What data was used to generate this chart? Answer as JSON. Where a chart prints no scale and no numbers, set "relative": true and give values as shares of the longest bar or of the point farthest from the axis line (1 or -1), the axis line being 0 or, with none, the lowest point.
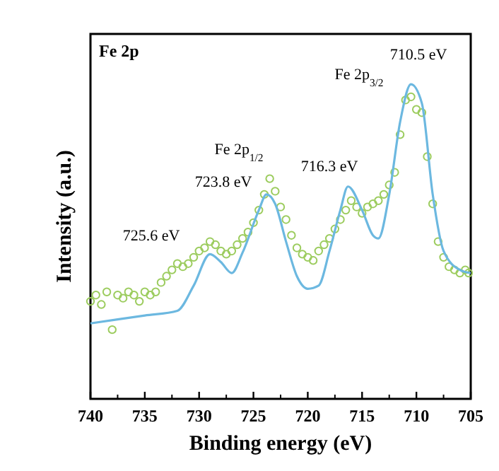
{
  "chart_data": {
    "type": "line",
    "title": "Fe 2p",
    "xlabel": "Binding energy (eV)",
    "ylabel": "Intensity (a.u.)",
    "relative": true,
    "xlim": [
      740,
      705
    ],
    "xticks": [
      740,
      735,
      730,
      725,
      720,
      715,
      710,
      705
    ],
    "series": [
      {
        "type": "scatter",
        "color": "#9ccc5e",
        "x": [
          740,
          739.5,
          739,
          738.5,
          738,
          737.5,
          737,
          736.5,
          736,
          735.5,
          735,
          734.5,
          734,
          733.5,
          733,
          732.5,
          732,
          731.5,
          731,
          730.5,
          730,
          729.5,
          729,
          728.5,
          728,
          727.5,
          727,
          726.5,
          726,
          725.5,
          725,
          724.5,
          724,
          723.5,
          723,
          722.5,
          722,
          721.5,
          721,
          720.5,
          720,
          719.5,
          719,
          718.5,
          718,
          717.5,
          717,
          716.5,
          716,
          715.5,
          715,
          714.5,
          714,
          713.5,
          713,
          712.5,
          712,
          711.5,
          711,
          710.5,
          710,
          709.5,
          709,
          708.5,
          708,
          707.5,
          707,
          706.5,
          706,
          705.5,
          705.2
        ],
        "values": [
          0.31,
          0.33,
          0.3,
          0.34,
          0.22,
          0.33,
          0.32,
          0.34,
          0.33,
          0.31,
          0.34,
          0.33,
          0.34,
          0.37,
          0.39,
          0.41,
          0.43,
          0.42,
          0.43,
          0.45,
          0.47,
          0.48,
          0.5,
          0.49,
          0.47,
          0.46,
          0.47,
          0.49,
          0.51,
          0.53,
          0.56,
          0.6,
          0.65,
          0.7,
          0.66,
          0.61,
          0.57,
          0.52,
          0.48,
          0.46,
          0.45,
          0.44,
          0.47,
          0.49,
          0.51,
          0.54,
          0.57,
          0.6,
          0.63,
          0.61,
          0.59,
          0.61,
          0.62,
          0.63,
          0.65,
          0.68,
          0.72,
          0.84,
          0.95,
          0.96,
          0.92,
          0.91,
          0.77,
          0.62,
          0.5,
          0.45,
          0.42,
          0.41,
          0.4,
          0.41,
          0.4
        ]
      },
      {
        "color": "#6cb8e0",
        "x": [
          740,
          735,
          732,
          730.5,
          729,
          728,
          727,
          726,
          724.5,
          723.8,
          723,
          722,
          721,
          720,
          719,
          718,
          717,
          716.3,
          715,
          714,
          713.5,
          712.5,
          711.5,
          710.5,
          709.5,
          708.5,
          707.5,
          706,
          705
        ],
        "values": [
          0.24,
          0.265,
          0.28,
          0.36,
          0.46,
          0.435,
          0.4,
          0.465,
          0.6,
          0.65,
          0.62,
          0.5,
          0.39,
          0.35,
          0.36,
          0.47,
          0.6,
          0.675,
          0.6,
          0.52,
          0.51,
          0.65,
          0.88,
          1.0,
          0.94,
          0.65,
          0.47,
          0.41,
          0.4
        ]
      }
    ],
    "annotations": [
      "710.5 eV",
      "Fe 2p$_{3/2}$",
      "716.3 eV",
      "Fe 2p$_{1/2}$",
      "723.8 eV",
      "725.6 eV"
    ]
  }
}
